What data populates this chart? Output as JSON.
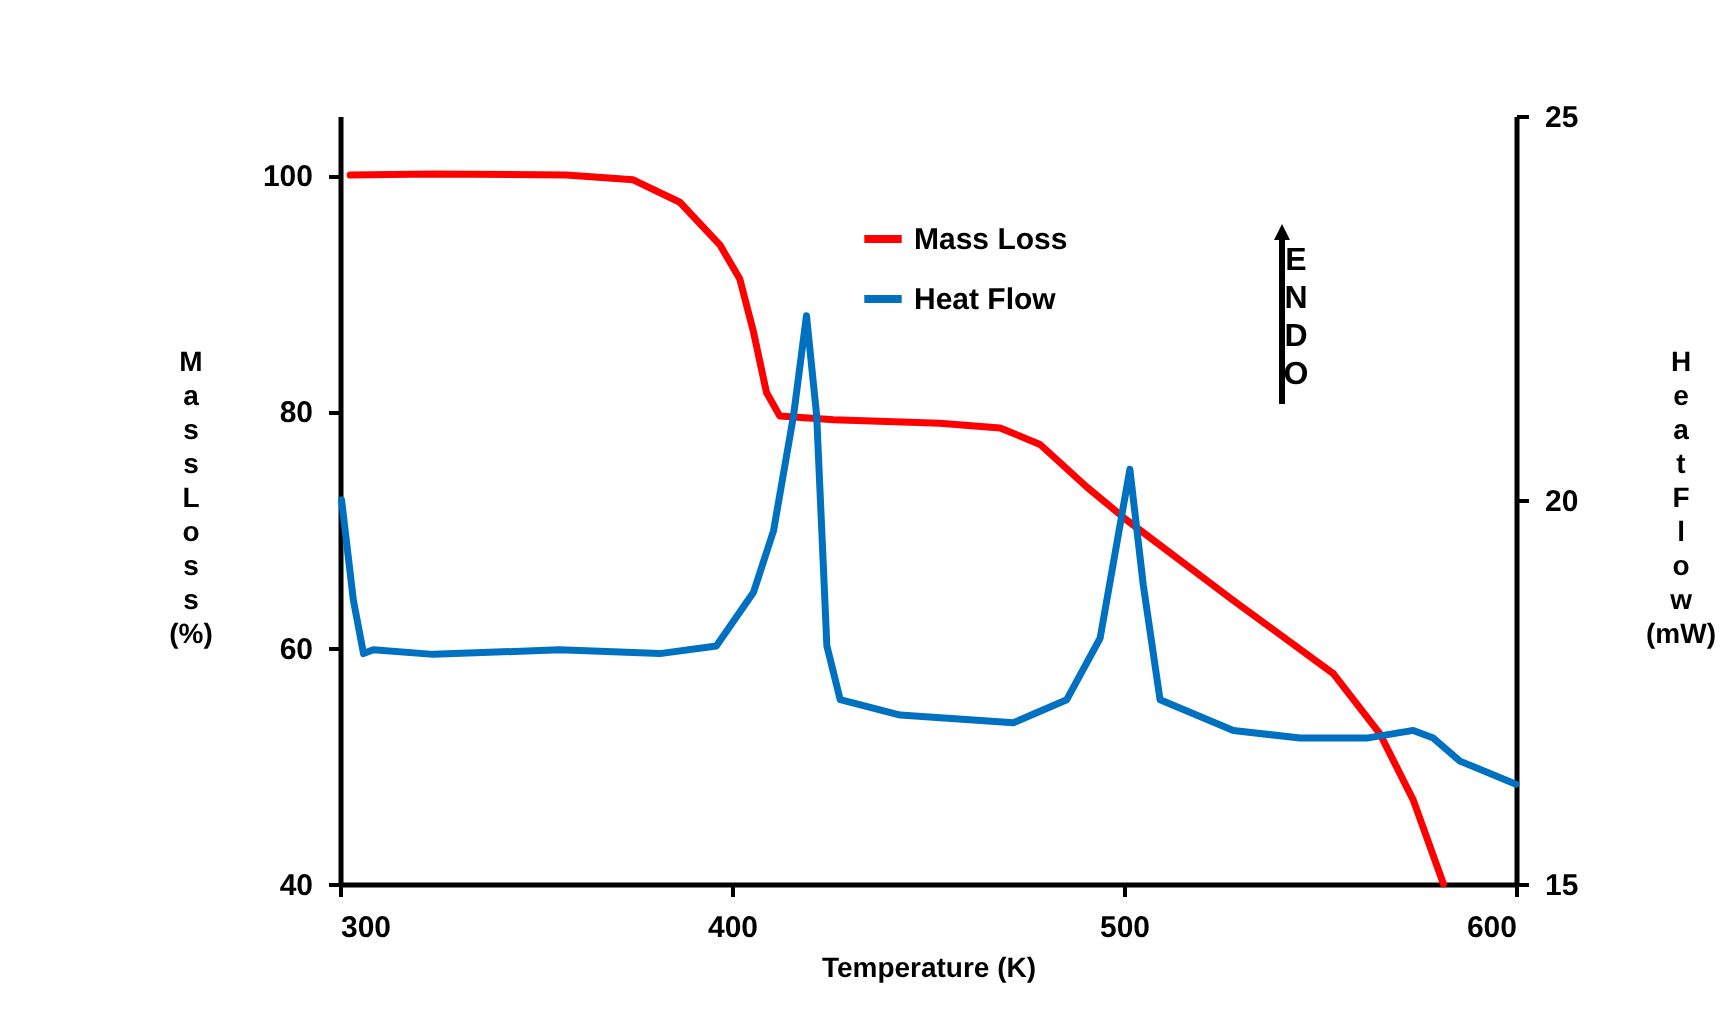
{
  "chart_data": {
    "type": "line",
    "xlabel": "Temperature (K)",
    "ylabel": "Mass Loss (%)",
    "y2label": "Heat Flow (mW)",
    "xlim": [
      300,
      600
    ],
    "xticks": [
      300,
      400,
      500,
      600
    ],
    "ylim": [
      40,
      105
    ],
    "yticks": [
      40,
      60,
      80,
      100
    ],
    "y2lim": [
      15,
      25
    ],
    "y2ticks": [
      15,
      20,
      25
    ],
    "grid": false,
    "legend": "top",
    "marker": "none",
    "line_style": "solid",
    "annotations": [
      "ENDO"
    ],
    "series": [
      {
        "name": "Mass Loss",
        "color": "#ff0000",
        "x": [
          302.6,
          323.8,
          357.7,
          374.8,
          386.7,
          396.9,
          402,
          405.5,
          408.8,
          412.2,
          425.9,
          453,
          468.4,
          478.6,
          490.5,
          500.7,
          527.9,
          553.4,
          565.3,
          573.8,
          581.5
        ],
        "values": [
          100,
          100.1,
          100,
          99.6,
          97.7,
          94.1,
          91.2,
          86.7,
          81.6,
          79.6,
          79.3,
          79.0,
          78.6,
          77.2,
          73.6,
          70.8,
          64.0,
          57.8,
          52.7,
          47.1,
          40
        ]
      },
      {
        "name": "Heat  Flow",
        "color": "#0070c0",
        "axis": "y2",
        "x": [
          300.4,
          303.4,
          306,
          308.5,
          323.8,
          356,
          381.6,
          396,
          405.5,
          410.6,
          415.7,
          419,
          421.6,
          424.2,
          427.6,
          442.9,
          471.8,
          485.4,
          493.9,
          501.5,
          504.9,
          509.2,
          527.9,
          544.9,
          561.9,
          573.8,
          578.9,
          585.7,
          600
        ],
        "values": [
          20.0,
          18.7,
          18.0,
          18.05,
          17.99,
          18.05,
          18.0,
          18.1,
          18.8,
          19.6,
          21.1,
          22.4,
          21.1,
          18.1,
          17.4,
          17.2,
          17.1,
          17.4,
          18.2,
          20.4,
          18.9,
          17.4,
          17.0,
          16.9,
          16.9,
          17.0,
          16.9,
          16.6,
          16.3
        ]
      }
    ]
  }
}
